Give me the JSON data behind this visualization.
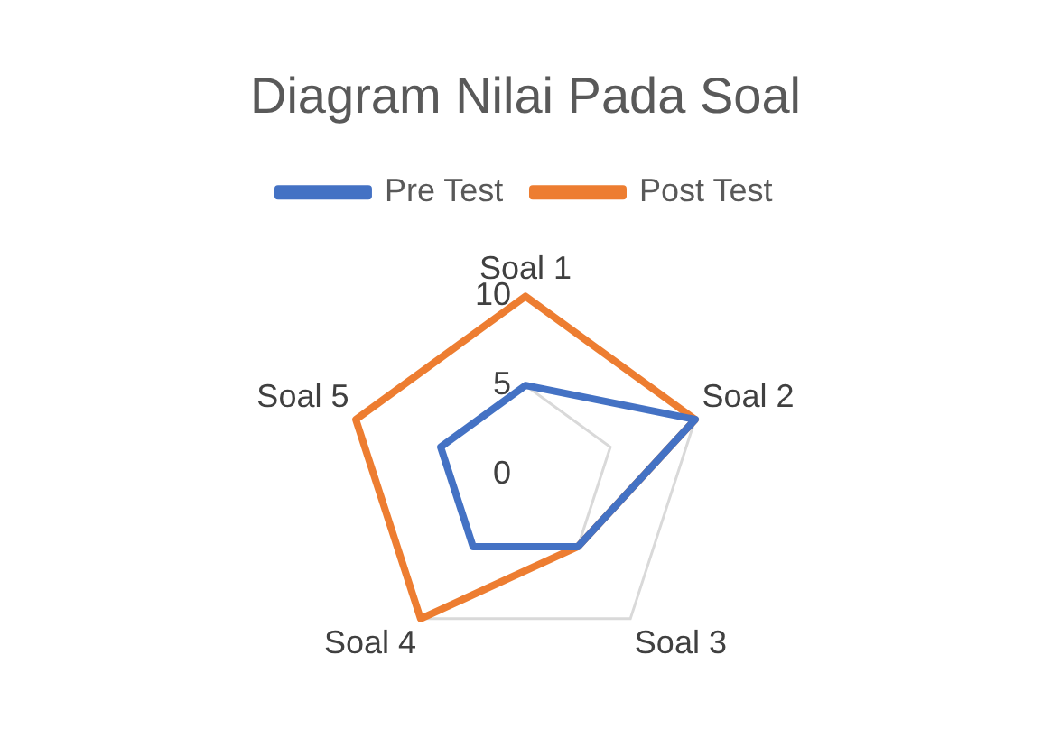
{
  "chart_data": {
    "type": "radar",
    "title": "Diagram Nilai Pada Soal",
    "categories": [
      "Soal 1",
      "Soal 2",
      "Soal 3",
      "Soal 4",
      "Soal 5"
    ],
    "series": [
      {
        "name": "Pre Test",
        "color": "#4472c4",
        "values": [
          5,
          10,
          5,
          5,
          5
        ]
      },
      {
        "name": "Post Test",
        "color": "#ed7d31",
        "values": [
          10,
          10,
          5,
          10,
          10
        ]
      }
    ],
    "ylim": [
      0,
      10
    ],
    "yticks": [
      0,
      5,
      10
    ],
    "grid": true,
    "legend": "top",
    "marker": "none"
  }
}
